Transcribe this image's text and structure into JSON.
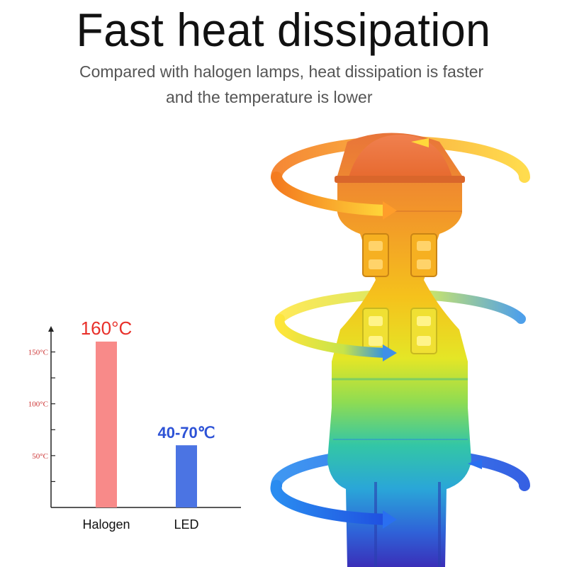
{
  "header": {
    "title": "Fast heat dissipation",
    "subtitle_line1": "Compared with halogen lamps, heat dissipation is faster",
    "subtitle_line2": "and the temperature is lower"
  },
  "colors": {
    "halogen": "#f88a89",
    "led": "#4b74e3",
    "halogen_label": "#e8302a",
    "led_label": "#2d52d6",
    "axis": "#222222",
    "tick_label": "#cc3333"
  },
  "chart_data": {
    "type": "bar",
    "categories": [
      "Halogen",
      "LED"
    ],
    "values": [
      160,
      60
    ],
    "value_labels": [
      "160°C",
      "40-70℃"
    ],
    "y_ticks": [
      {
        "value": 150,
        "label": "150°C"
      },
      {
        "value": 100,
        "label": "100°C"
      },
      {
        "value": 50,
        "label": "50°C"
      }
    ],
    "ylim": [
      0,
      175
    ],
    "title": "",
    "xlabel": "",
    "ylabel": "",
    "grid": false
  },
  "illustration": {
    "name": "led-bulb-heat-flow",
    "icon": "led-bulb-icon"
  }
}
